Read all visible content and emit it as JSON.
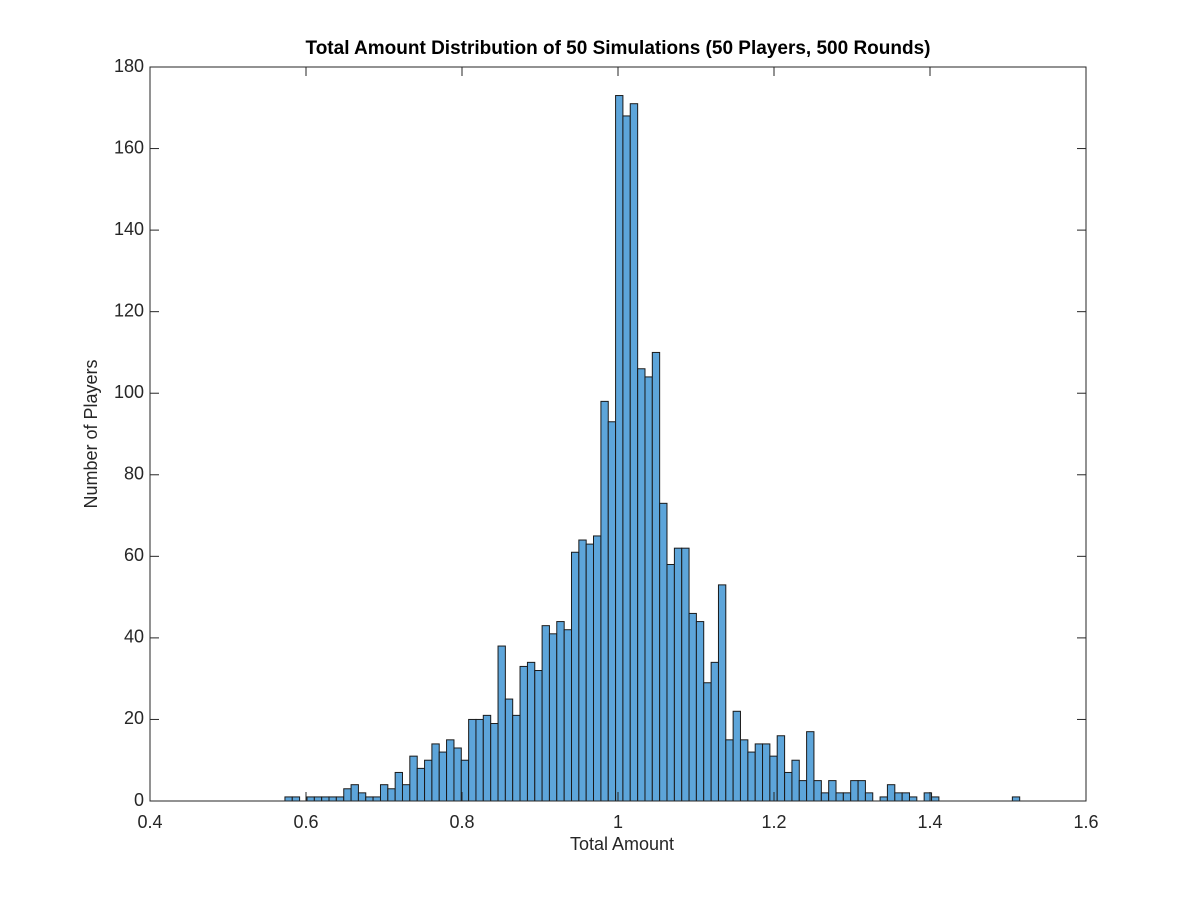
{
  "chart_data": {
    "type": "histogram",
    "title": "Total Amount Distribution of 50 Simulations (50 Players, 500 Rounds)",
    "x_label": "Total Amount",
    "y_label": "Number of Players",
    "color": "#5da5da",
    "edge_color": "#1a1a1a",
    "bins": [
      0.573,
      0.5824,
      0.5918,
      0.6013,
      0.6107,
      0.6201,
      0.6295,
      0.6389,
      0.6484,
      0.6578,
      0.6672,
      0.6766,
      0.686,
      0.6955,
      0.7049,
      0.7143,
      0.7237,
      0.7331,
      0.7426,
      0.752,
      0.7614,
      0.7708,
      0.7802,
      0.7897,
      0.7991,
      0.8085,
      0.8179,
      0.8273,
      0.8368,
      0.8462,
      0.8556,
      0.865,
      0.8744,
      0.8839,
      0.8933,
      0.9027,
      0.9121,
      0.9215,
      0.931,
      0.9404,
      0.9498,
      0.9592,
      0.9686,
      0.9781,
      0.9875,
      0.9969,
      1.0063,
      1.0157,
      1.0252,
      1.0346,
      1.044,
      1.0534,
      1.0628,
      1.0723,
      1.0817,
      1.0911,
      1.1005,
      1.1099,
      1.1194,
      1.1288,
      1.1382,
      1.1476,
      1.157,
      1.1665,
      1.1759,
      1.1853,
      1.1947,
      1.2041,
      1.2136,
      1.223,
      1.2324,
      1.2418,
      1.2512,
      1.2607,
      1.2701,
      1.2795,
      1.2889,
      1.2983,
      1.3078,
      1.3172,
      1.3266,
      1.336,
      1.3454,
      1.3549,
      1.3643,
      1.3737,
      1.3831,
      1.3925,
      1.402,
      1.4114,
      1.4208,
      1.4302,
      1.4396,
      1.4491,
      1.4585,
      1.4679,
      1.4773,
      1.4867,
      1.4962,
      1.5056,
      1.515
    ],
    "counts": [
      1,
      1,
      0,
      1,
      1,
      1,
      1,
      1,
      3,
      4,
      2,
      1,
      1,
      4,
      3,
      7,
      4,
      11,
      8,
      10,
      14,
      12,
      15,
      13,
      10,
      20,
      20,
      21,
      19,
      38,
      25,
      21,
      33,
      34,
      32,
      43,
      41,
      44,
      42,
      61,
      64,
      63,
      65,
      98,
      93,
      173,
      168,
      171,
      106,
      104,
      110,
      73,
      58,
      62,
      62,
      46,
      44,
      29,
      34,
      53,
      15,
      22,
      15,
      12,
      14,
      14,
      11,
      16,
      7,
      10,
      5,
      17,
      5,
      2,
      5,
      2,
      2,
      5,
      5,
      2,
      0,
      1,
      4,
      2,
      2,
      1,
      0,
      2,
      1,
      0,
      0,
      0,
      0,
      0,
      0,
      0,
      0,
      0,
      0,
      1
    ],
    "xlim": [
      0.4,
      1.6
    ],
    "xticks": [
      0.4,
      0.6,
      0.8,
      1,
      1.2,
      1.4,
      1.6
    ],
    "ylim": [
      0,
      180
    ],
    "yticks": [
      0,
      20,
      40,
      60,
      80,
      100,
      120,
      140,
      160,
      180
    ],
    "grid": false
  }
}
